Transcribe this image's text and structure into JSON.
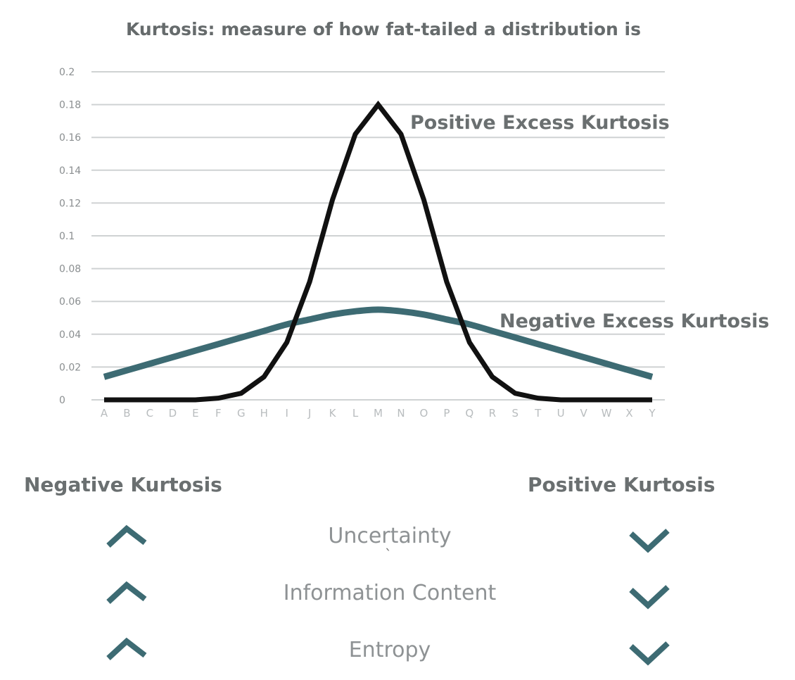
{
  "chart_data": {
    "type": "line",
    "title": "Kurtosis: measure of how fat-tailed a distribution is",
    "xlabel": "",
    "ylabel": "",
    "categories": [
      "A",
      "B",
      "C",
      "D",
      "E",
      "F",
      "G",
      "H",
      "I",
      "J",
      "K",
      "L",
      "M",
      "N",
      "O",
      "P",
      "Q",
      "R",
      "S",
      "T",
      "U",
      "V",
      "W",
      "X",
      "Y"
    ],
    "ylim": [
      0,
      0.2
    ],
    "yticks": [
      "0",
      "0.02",
      "0.04",
      "0.06",
      "0.08",
      "0.1",
      "0.12",
      "0.14",
      "0.16",
      "0.18",
      "0.2"
    ],
    "grid": true,
    "series": [
      {
        "name": "Positive Excess Kurtosis",
        "color": "#111111",
        "values": [
          0,
          0,
          0,
          0,
          0,
          0.001,
          0.004,
          0.014,
          0.035,
          0.072,
          0.122,
          0.162,
          0.18,
          0.162,
          0.122,
          0.072,
          0.035,
          0.014,
          0.004,
          0.001,
          0,
          0,
          0,
          0,
          0
        ]
      },
      {
        "name": "Negative Excess Kurtosis",
        "color": "#3d6b73",
        "values": [
          0.014,
          0.018,
          0.022,
          0.026,
          0.03,
          0.034,
          0.038,
          0.042,
          0.046,
          0.049,
          0.052,
          0.054,
          0.055,
          0.054,
          0.052,
          0.049,
          0.046,
          0.042,
          0.038,
          0.034,
          0.03,
          0.026,
          0.022,
          0.018,
          0.014
        ]
      }
    ]
  },
  "comparison": {
    "left_heading": "Negative Kurtosis",
    "right_heading": "Positive Kurtosis",
    "rows": [
      {
        "label": "Uncertainty",
        "left": "up",
        "right": "down"
      },
      {
        "label": "Information Content",
        "left": "up",
        "right": "down"
      },
      {
        "label": "Entropy",
        "left": "up",
        "right": "down"
      }
    ],
    "arrow_color": "#3d6b73",
    "stray_mark": "`"
  }
}
